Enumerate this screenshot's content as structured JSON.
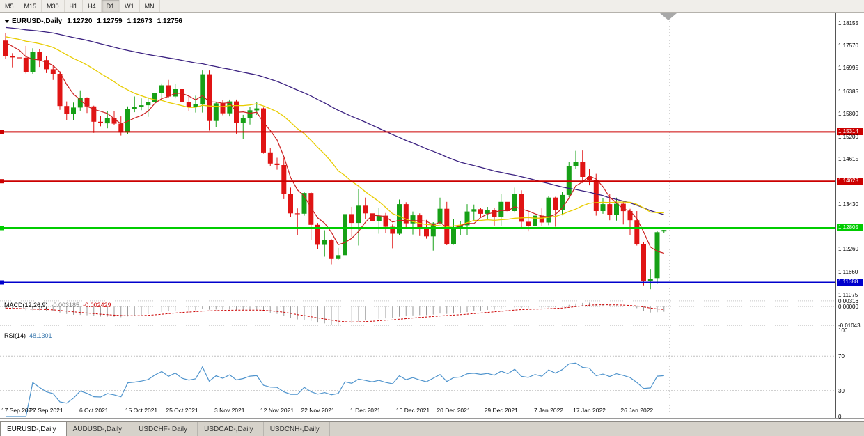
{
  "toolbar": {
    "timeframes": [
      "M5",
      "M15",
      "M30",
      "H1",
      "H4",
      "D1",
      "W1",
      "MN"
    ],
    "active": "D1"
  },
  "chart_data": {
    "type": "candlestick",
    "symbol": "EURUSD-,Daily",
    "current_bar": {
      "open": "1.12720",
      "high": "1.12759",
      "low": "1.12673",
      "close": "1.12756"
    },
    "y_axis_ticks": [
      "1.18155",
      "1.17570",
      "1.16995",
      "1.16385",
      "1.15800",
      "1.15200",
      "1.14615",
      "1.13430",
      "1.12260",
      "1.11660",
      "1.11075"
    ],
    "horizontal_lines": [
      {
        "price": 1.15314,
        "label": "1.15314",
        "color": "#cc0000",
        "width": 2
      },
      {
        "price": 1.14028,
        "label": "1.14028",
        "color": "#cc0000",
        "width": 2
      },
      {
        "price": 1.12805,
        "label": "1.12805",
        "color": "#00cc00",
        "width": 3
      },
      {
        "price": 1.11388,
        "label": "1.11388",
        "color": "#0000cc",
        "width": 2
      }
    ],
    "date_labels": [
      {
        "i": 0,
        "t": "17 Sep 2021"
      },
      {
        "i": 6,
        "t": "27 Sep 2021"
      },
      {
        "i": 13,
        "t": "6 Oct 2021"
      },
      {
        "i": 20,
        "t": "15 Oct 2021"
      },
      {
        "i": 26,
        "t": "25 Oct 2021"
      },
      {
        "i": 33,
        "t": "3 Nov 2021"
      },
      {
        "i": 40,
        "t": "12 Nov 2021"
      },
      {
        "i": 46,
        "t": "22 Nov 2021"
      },
      {
        "i": 53,
        "t": "1 Dec 2021"
      },
      {
        "i": 60,
        "t": "10 Dec 2021"
      },
      {
        "i": 66,
        "t": "20 Dec 2021"
      },
      {
        "i": 73,
        "t": "29 Dec 2021"
      },
      {
        "i": 80,
        "t": "7 Jan 2022"
      },
      {
        "i": 86,
        "t": "17 Jan 2022"
      },
      {
        "i": 93,
        "t": "26 Jan 2022"
      }
    ],
    "ohlc": [
      [
        1.177,
        1.1789,
        1.1722,
        1.1729
      ],
      [
        1.1729,
        1.1737,
        1.17,
        1.1726
      ],
      [
        1.1726,
        1.1749,
        1.1715,
        1.1725
      ],
      [
        1.1725,
        1.1756,
        1.1684,
        1.1687
      ],
      [
        1.1687,
        1.175,
        1.1683,
        1.174
      ],
      [
        1.174,
        1.1748,
        1.1701,
        1.1719
      ],
      [
        1.1719,
        1.173,
        1.1685,
        1.1695
      ],
      [
        1.1695,
        1.1705,
        1.1667,
        1.1683
      ],
      [
        1.1683,
        1.169,
        1.1589,
        1.1599
      ],
      [
        1.1599,
        1.1611,
        1.1563,
        1.1579
      ],
      [
        1.1579,
        1.1608,
        1.1562,
        1.1595
      ],
      [
        1.1595,
        1.164,
        1.1587,
        1.1621
      ],
      [
        1.1621,
        1.1622,
        1.1581,
        1.1598
      ],
      [
        1.1598,
        1.16,
        1.1529,
        1.1558
      ],
      [
        1.1558,
        1.1573,
        1.1546,
        1.1554
      ],
      [
        1.1554,
        1.1586,
        1.1541,
        1.1567
      ],
      [
        1.1567,
        1.1586,
        1.1549,
        1.1553
      ],
      [
        1.1553,
        1.1572,
        1.1522,
        1.153
      ],
      [
        1.153,
        1.1598,
        1.1525,
        1.1592
      ],
      [
        1.1592,
        1.1624,
        1.1583,
        1.1596
      ],
      [
        1.1596,
        1.1619,
        1.1588,
        1.1601
      ],
      [
        1.1601,
        1.1622,
        1.1571,
        1.1609
      ],
      [
        1.1609,
        1.1669,
        1.1605,
        1.1633
      ],
      [
        1.1633,
        1.1658,
        1.1617,
        1.1653
      ],
      [
        1.1653,
        1.1667,
        1.1621,
        1.1624
      ],
      [
        1.1624,
        1.1656,
        1.1619,
        1.1643
      ],
      [
        1.1643,
        1.1664,
        1.1591,
        1.1609
      ],
      [
        1.1609,
        1.1626,
        1.1585,
        1.1596
      ],
      [
        1.1596,
        1.1626,
        1.1582,
        1.1603
      ],
      [
        1.1603,
        1.1692,
        1.1582,
        1.1682
      ],
      [
        1.1682,
        1.1692,
        1.1535,
        1.156
      ],
      [
        1.156,
        1.1609,
        1.1545,
        1.1606
      ],
      [
        1.1606,
        1.1614,
        1.1575,
        1.158
      ],
      [
        1.158,
        1.1616,
        1.1572,
        1.1611
      ],
      [
        1.1611,
        1.1616,
        1.1527,
        1.1555
      ],
      [
        1.1555,
        1.1576,
        1.1513,
        1.1567
      ],
      [
        1.1567,
        1.1596,
        1.1551,
        1.1588
      ],
      [
        1.1588,
        1.1609,
        1.1576,
        1.1593
      ],
      [
        1.1593,
        1.1595,
        1.1475,
        1.1478
      ],
      [
        1.1478,
        1.1489,
        1.1443,
        1.1449
      ],
      [
        1.1449,
        1.1464,
        1.1433,
        1.1445
      ],
      [
        1.1445,
        1.1464,
        1.1356,
        1.1369
      ],
      [
        1.1369,
        1.1386,
        1.131,
        1.1319
      ],
      [
        1.1319,
        1.1332,
        1.1263,
        1.1318
      ],
      [
        1.1318,
        1.1374,
        1.1313,
        1.1372
      ],
      [
        1.1372,
        1.1374,
        1.125,
        1.1289
      ],
      [
        1.1289,
        1.1294,
        1.1226,
        1.1237
      ],
      [
        1.1237,
        1.1275,
        1.1206,
        1.125
      ],
      [
        1.125,
        1.1252,
        1.1186,
        1.12
      ],
      [
        1.12,
        1.1229,
        1.1196,
        1.121
      ],
      [
        1.121,
        1.1323,
        1.1206,
        1.1317
      ],
      [
        1.1317,
        1.1336,
        1.1258,
        1.1294
      ],
      [
        1.1294,
        1.1383,
        1.1235,
        1.1339
      ],
      [
        1.1339,
        1.136,
        1.1305,
        1.1319
      ],
      [
        1.1319,
        1.1347,
        1.1286,
        1.1299
      ],
      [
        1.1299,
        1.1334,
        1.1266,
        1.1313
      ],
      [
        1.1313,
        1.132,
        1.1267,
        1.1284
      ],
      [
        1.1284,
        1.129,
        1.1228,
        1.1266
      ],
      [
        1.1266,
        1.1355,
        1.1263,
        1.1343
      ],
      [
        1.1343,
        1.1348,
        1.1278,
        1.1293
      ],
      [
        1.1293,
        1.1324,
        1.1264,
        1.1314
      ],
      [
        1.1314,
        1.1319,
        1.126,
        1.1283
      ],
      [
        1.1283,
        1.1302,
        1.1253,
        1.1259
      ],
      [
        1.1259,
        1.1296,
        1.1222,
        1.1293
      ],
      [
        1.1293,
        1.136,
        1.129,
        1.1331
      ],
      [
        1.1331,
        1.1349,
        1.1236,
        1.1239
      ],
      [
        1.1239,
        1.1304,
        1.1237,
        1.1281
      ],
      [
        1.1281,
        1.1298,
        1.1262,
        1.1288
      ],
      [
        1.1288,
        1.1343,
        1.1263,
        1.1324
      ],
      [
        1.1324,
        1.1342,
        1.1299,
        1.133
      ],
      [
        1.133,
        1.1334,
        1.1308,
        1.1318
      ],
      [
        1.1318,
        1.1336,
        1.1304,
        1.1327
      ],
      [
        1.1327,
        1.1334,
        1.1287,
        1.131
      ],
      [
        1.131,
        1.137,
        1.1287,
        1.1349
      ],
      [
        1.1349,
        1.136,
        1.1316,
        1.1325
      ],
      [
        1.1325,
        1.1386,
        1.1321,
        1.137
      ],
      [
        1.137,
        1.1379,
        1.1279,
        1.1297
      ],
      [
        1.1297,
        1.1323,
        1.1272,
        1.1285
      ],
      [
        1.1285,
        1.1347,
        1.1272,
        1.1313
      ],
      [
        1.1313,
        1.1332,
        1.1285,
        1.1295
      ],
      [
        1.1295,
        1.1364,
        1.1288,
        1.136
      ],
      [
        1.136,
        1.1362,
        1.1284,
        1.1328
      ],
      [
        1.1328,
        1.1374,
        1.1314,
        1.1367
      ],
      [
        1.1367,
        1.1453,
        1.1361,
        1.1443
      ],
      [
        1.1443,
        1.1482,
        1.1435,
        1.1454
      ],
      [
        1.1454,
        1.1483,
        1.1398,
        1.1414
      ],
      [
        1.1414,
        1.1435,
        1.1392,
        1.1406
      ],
      [
        1.1406,
        1.1422,
        1.1313,
        1.1325
      ],
      [
        1.1325,
        1.1358,
        1.1318,
        1.1343
      ],
      [
        1.1343,
        1.1369,
        1.1301,
        1.1315
      ],
      [
        1.1315,
        1.136,
        1.13,
        1.1344
      ],
      [
        1.1344,
        1.1349,
        1.129,
        1.1325
      ],
      [
        1.1325,
        1.1331,
        1.1263,
        1.1301
      ],
      [
        1.1301,
        1.1325,
        1.1235,
        1.1239
      ],
      [
        1.1239,
        1.1245,
        1.1131,
        1.1143
      ],
      [
        1.1143,
        1.1174,
        1.1121,
        1.1148
      ],
      [
        1.115,
        1.1274,
        1.1135,
        1.127
      ],
      [
        1.1272,
        1.12759,
        1.12673,
        1.12756
      ]
    ],
    "indicators": {
      "macd": {
        "name": "MACD(12,26,9)",
        "main_value": "-0.003185",
        "signal_value": "-0.002429",
        "axis_labels": [
          "0.00316",
          "0.00000",
          "-0.01043"
        ]
      },
      "rsi": {
        "name": "RSI(14)",
        "value": "48.1301",
        "axis_labels": [
          "100",
          "70",
          "30",
          "0"
        ],
        "levels": [
          70,
          30
        ]
      }
    }
  },
  "colors": {
    "bull": "#16a016",
    "bear": "#e01414",
    "ma_fast": "#cc2020",
    "ma_mid": "#e8cc00",
    "ma_slow": "#3a2080",
    "macd_hist": "#9a9a9a",
    "macd_signal": "#cc0000",
    "rsi_line": "#4f94cd"
  },
  "tabs": [
    {
      "label": "EURUSD-,Daily",
      "active": true
    },
    {
      "label": "AUDUSD-,Daily",
      "active": false
    },
    {
      "label": "USDCHF-,Daily",
      "active": false
    },
    {
      "label": "USDCAD-,Daily",
      "active": false
    },
    {
      "label": "USDCNH-,Daily",
      "active": false
    }
  ]
}
